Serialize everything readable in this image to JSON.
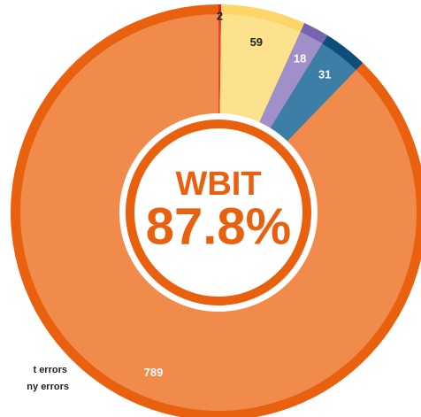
{
  "chart_data": {
    "type": "donut",
    "values": [
      2,
      59,
      18,
      31,
      789
    ],
    "colors": [
      "#e8452a",
      "#fde28e",
      "#a08fc8",
      "#3d7ea6",
      "#f08b4c"
    ],
    "rim_colors": [
      "#d8281a",
      "#fdd568",
      "#7863ae",
      "#0e4c7c",
      "#e9600f"
    ],
    "label_colors": [
      "#222222",
      "#222222",
      "#ffffff",
      "#ffffff",
      "#ffffff"
    ],
    "center_title": "WBIT",
    "center_value": "87.8%",
    "legend_fragments": [
      "t errors",
      "ny errors"
    ]
  }
}
